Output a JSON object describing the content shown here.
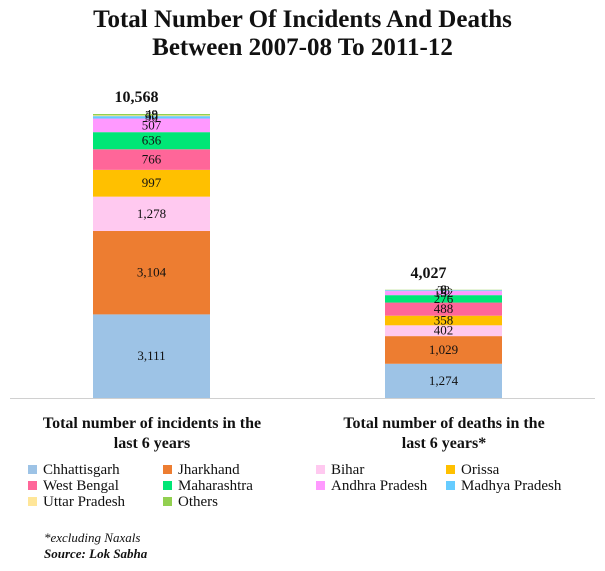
{
  "chart_data": {
    "type": "bar",
    "stacked": true,
    "title": [
      "Total Number Of Incidents And Deaths",
      "Between 2007-08 To 2011-12"
    ],
    "categories": [
      "Total number of incidents in the last 6 years",
      "Total number of deaths in the last 6 years*"
    ],
    "category_lines": [
      [
        "Total number of incidents in the",
        "last 6 years"
      ],
      [
        "Total number of deaths in the",
        "last 6 years*"
      ]
    ],
    "totals": [
      "10,568",
      "4,027"
    ],
    "total_values": [
      10568,
      4027
    ],
    "series": [
      {
        "name": "Chhattisgarh",
        "color": "#9dc3e6",
        "values": [
          3111,
          1274
        ],
        "labels": [
          "3,111",
          "1,274"
        ]
      },
      {
        "name": "Jharkhand",
        "color": "#ed7d31",
        "values": [
          3104,
          1029
        ],
        "labels": [
          "3,104",
          "1,029"
        ]
      },
      {
        "name": "Bihar",
        "color": "#ffc9f0",
        "values": [
          1278,
          402
        ],
        "labels": [
          "1,278",
          "402"
        ]
      },
      {
        "name": "Orissa",
        "color": "#ffc000",
        "values": [
          997,
          358
        ],
        "labels": [
          "997",
          "358"
        ]
      },
      {
        "name": "West Bengal",
        "color": "#ff6699",
        "values": [
          766,
          488
        ],
        "labels": [
          "766",
          "488"
        ]
      },
      {
        "name": "Maharashtra",
        "color": "#00e676",
        "values": [
          636,
          276
        ],
        "labels": [
          "636",
          "276"
        ]
      },
      {
        "name": "Andhra Pradesh",
        "color": "#ff99ff",
        "values": [
          507,
          152
        ],
        "labels": [
          "507",
          "152"
        ]
      },
      {
        "name": "Madhya Pradesh",
        "color": "#66ccff",
        "values": [
          90,
          33
        ],
        "labels": [
          "90",
          "33"
        ]
      },
      {
        "name": "Uttar Pradesh",
        "color": "#ffe699",
        "values": [
          30,
          6
        ],
        "labels": [
          "30",
          "6"
        ]
      },
      {
        "name": "Others",
        "color": "#92d050",
        "values": [
          49,
          9
        ],
        "labels": [
          "49",
          "9"
        ]
      }
    ],
    "legend": "bottom",
    "grid": false
  },
  "footnote": "*excluding Naxals",
  "source": "Source: Lok Sabha"
}
